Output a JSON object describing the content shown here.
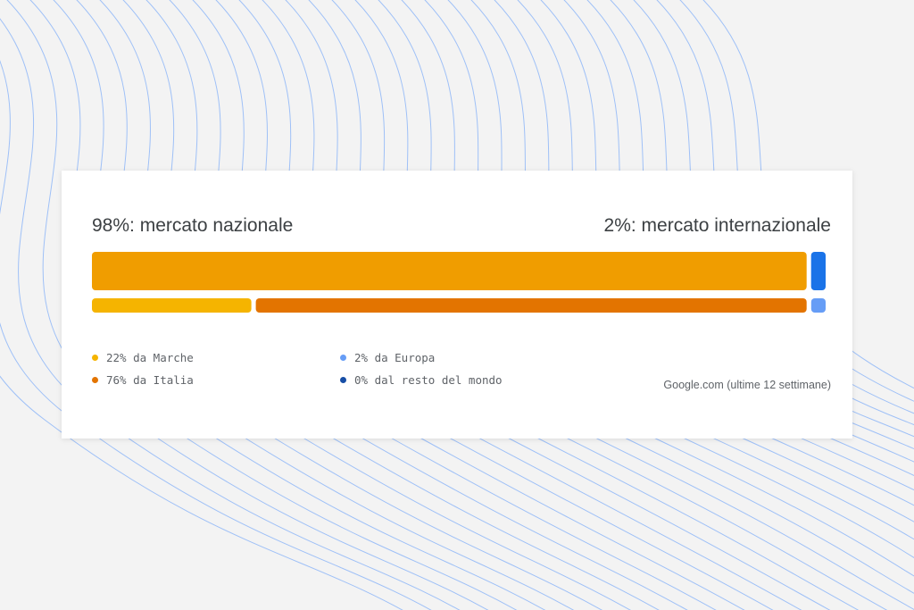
{
  "chart_data": {
    "type": "bar",
    "orientation": "horizontal-stacked",
    "top_bar": [
      {
        "name": "mercato nazionale",
        "value": 98,
        "color": "#f09d00"
      },
      {
        "name": "mercato internazionale",
        "value": 2,
        "color": "#1a73e8"
      }
    ],
    "bottom_bar": [
      {
        "name": "da Marche",
        "value": 22,
        "color": "#f5b400"
      },
      {
        "name": "da Italia",
        "value": 76,
        "color": "#e37400"
      },
      {
        "name": "da Europa",
        "value": 2,
        "color": "#669df6"
      },
      {
        "name": "dal resto del mondo",
        "value": 0,
        "color": "#174ea6"
      }
    ]
  },
  "header": {
    "left_label": "98%: mercato nazionale",
    "right_label": "2%: mercato internazionale"
  },
  "legend": [
    {
      "label": "22% da Marche",
      "color": "#f5b400"
    },
    {
      "label": "76% da Italia",
      "color": "#e37400"
    },
    {
      "label": "2% da Europa",
      "color": "#669df6"
    },
    {
      "label": "0% dal resto del mondo",
      "color": "#174ea6"
    }
  ],
  "source": "Google.com (ultime 12 settimane)"
}
